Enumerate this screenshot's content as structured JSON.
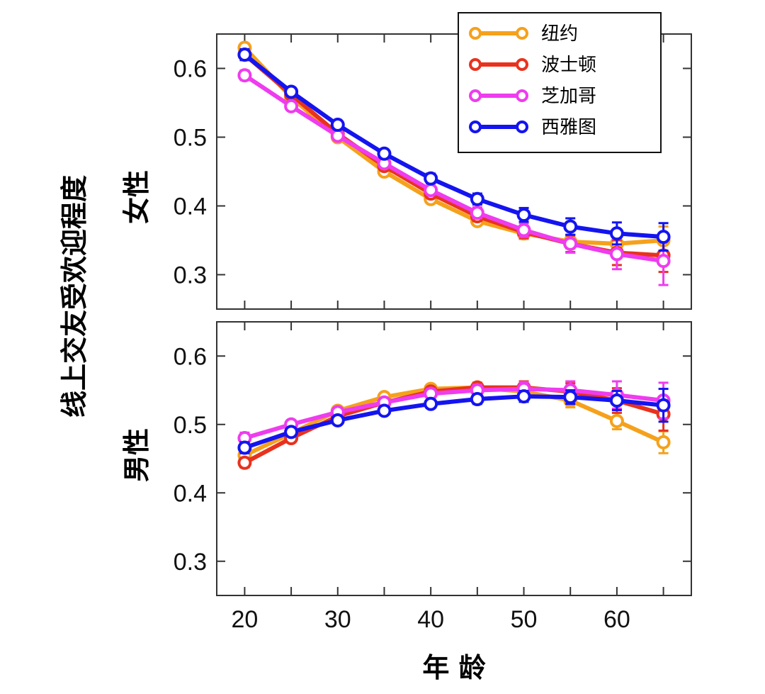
{
  "chart_data": [
    {
      "type": "line",
      "panel": "top",
      "panel_label": "女性",
      "x": [
        20,
        25,
        30,
        35,
        40,
        45,
        50,
        55,
        60,
        65
      ],
      "ylim": [
        0.25,
        0.65
      ],
      "yticks": [
        0.3,
        0.4,
        0.5,
        0.6
      ],
      "series": [
        {
          "name": "纽约",
          "color": "#F5A11C",
          "values": [
            0.63,
            0.558,
            0.5,
            0.45,
            0.41,
            0.378,
            0.36,
            0.348,
            0.345,
            0.35
          ],
          "errors": [
            0.006,
            0.005,
            0.005,
            0.005,
            0.005,
            0.006,
            0.008,
            0.01,
            0.014,
            0.02
          ]
        },
        {
          "name": "波士顿",
          "color": "#E8321E",
          "values": [
            0.62,
            0.562,
            0.505,
            0.458,
            0.418,
            0.385,
            0.362,
            0.345,
            0.332,
            0.328
          ],
          "errors": [
            0.007,
            0.006,
            0.005,
            0.005,
            0.006,
            0.007,
            0.009,
            0.012,
            0.018,
            0.024
          ]
        },
        {
          "name": "芝加哥",
          "color": "#EE3CEE",
          "values": [
            0.59,
            0.545,
            0.502,
            0.462,
            0.423,
            0.39,
            0.365,
            0.345,
            0.33,
            0.32
          ],
          "errors": [
            0.007,
            0.006,
            0.005,
            0.006,
            0.006,
            0.008,
            0.01,
            0.013,
            0.022,
            0.035
          ]
        },
        {
          "name": "西雅图",
          "color": "#1414F0",
          "values": [
            0.62,
            0.566,
            0.518,
            0.476,
            0.44,
            0.41,
            0.387,
            0.37,
            0.36,
            0.355
          ],
          "errors": [
            0.008,
            0.006,
            0.006,
            0.006,
            0.007,
            0.008,
            0.01,
            0.012,
            0.016,
            0.02
          ]
        }
      ]
    },
    {
      "type": "line",
      "panel": "bottom",
      "panel_label": "男性",
      "x": [
        20,
        25,
        30,
        35,
        40,
        45,
        50,
        55,
        60,
        65
      ],
      "ylim": [
        0.25,
        0.65
      ],
      "yticks": [
        0.3,
        0.4,
        0.5,
        0.6
      ],
      "series": [
        {
          "name": "纽约",
          "color": "#F5A11C",
          "values": [
            0.455,
            0.487,
            0.52,
            0.54,
            0.552,
            0.554,
            0.548,
            0.535,
            0.505,
            0.474
          ],
          "errors": [
            0.006,
            0.005,
            0.005,
            0.005,
            0.006,
            0.007,
            0.008,
            0.01,
            0.012,
            0.016
          ]
        },
        {
          "name": "波士顿",
          "color": "#E8321E",
          "values": [
            0.444,
            0.48,
            0.512,
            0.532,
            0.548,
            0.554,
            0.554,
            0.548,
            0.535,
            0.515
          ],
          "errors": [
            0.007,
            0.006,
            0.005,
            0.006,
            0.006,
            0.007,
            0.009,
            0.012,
            0.018,
            0.024
          ]
        },
        {
          "name": "芝加哥",
          "color": "#EE3CEE",
          "values": [
            0.48,
            0.5,
            0.518,
            0.532,
            0.545,
            0.55,
            0.552,
            0.55,
            0.543,
            0.535
          ],
          "errors": [
            0.008,
            0.006,
            0.005,
            0.006,
            0.007,
            0.008,
            0.01,
            0.013,
            0.02,
            0.026
          ]
        },
        {
          "name": "西雅图",
          "color": "#1414F0",
          "values": [
            0.466,
            0.489,
            0.506,
            0.52,
            0.53,
            0.537,
            0.541,
            0.54,
            0.535,
            0.528
          ],
          "errors": [
            0.008,
            0.006,
            0.005,
            0.005,
            0.006,
            0.007,
            0.008,
            0.01,
            0.014,
            0.024
          ]
        }
      ]
    }
  ],
  "xticks": [
    20,
    30,
    40,
    50,
    60
  ],
  "xminor": [
    25,
    35,
    45,
    55,
    65
  ],
  "xlim": [
    17,
    68
  ],
  "xlabel": "年 龄",
  "ylabel": "线上交友受欢迎程度",
  "legend": {
    "position": "top-right of top panel",
    "entries": [
      "纽约",
      "波士顿",
      "芝加哥",
      "西雅图"
    ]
  }
}
